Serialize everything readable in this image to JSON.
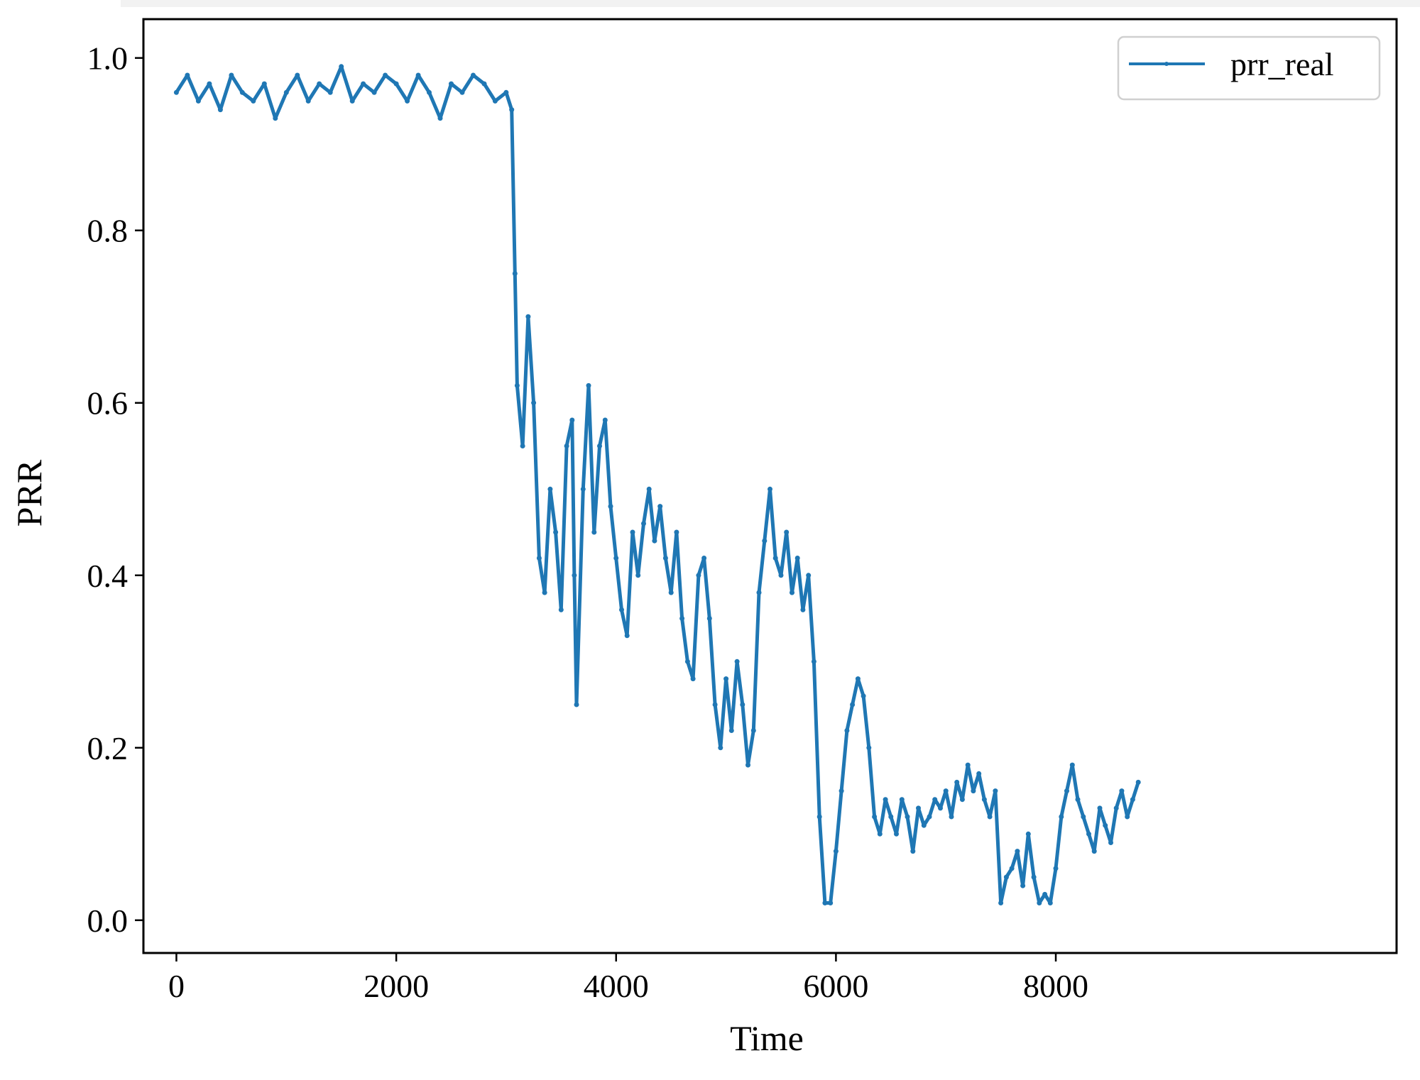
{
  "chart_data": {
    "type": "line",
    "title": "",
    "xlabel": "Time",
    "ylabel": "PRR",
    "xlim": [
      -300,
      11100
    ],
    "ylim": [
      -0.038,
      1.045
    ],
    "x_ticks": [
      0,
      2000,
      4000,
      6000,
      8000
    ],
    "x_tick_labels": [
      "0",
      "2000",
      "4000",
      "6000",
      "8000"
    ],
    "y_ticks": [
      0.0,
      0.2,
      0.4,
      0.6,
      0.8,
      1.0
    ],
    "y_tick_labels": [
      "0.0",
      "0.2",
      "0.4",
      "0.6",
      "0.8",
      "1.0"
    ],
    "grid": false,
    "legend_position": "top-right",
    "series": [
      {
        "name": "prr_real",
        "color": "#1f77b4",
        "marker": "dot",
        "x": [
          0,
          100,
          200,
          300,
          400,
          500,
          600,
          700,
          800,
          900,
          1000,
          1100,
          1200,
          1300,
          1400,
          1500,
          1600,
          1700,
          1800,
          1900,
          2000,
          2100,
          2200,
          2300,
          2400,
          2500,
          2600,
          2700,
          2800,
          2900,
          3000,
          3050,
          3080,
          3100,
          3150,
          3200,
          3250,
          3300,
          3350,
          3400,
          3450,
          3500,
          3550,
          3600,
          3620,
          3640,
          3700,
          3750,
          3800,
          3850,
          3900,
          3950,
          4000,
          4050,
          4100,
          4150,
          4200,
          4250,
          4300,
          4350,
          4400,
          4450,
          4500,
          4550,
          4600,
          4650,
          4700,
          4750,
          4800,
          4850,
          4900,
          4950,
          5000,
          5050,
          5100,
          5150,
          5200,
          5250,
          5300,
          5350,
          5400,
          5450,
          5500,
          5550,
          5600,
          5650,
          5700,
          5750,
          5800,
          5850,
          5900,
          5950,
          6000,
          6050,
          6100,
          6150,
          6200,
          6250,
          6300,
          6350,
          6400,
          6450,
          6500,
          6550,
          6600,
          6650,
          6700,
          6750,
          6800,
          6850,
          6900,
          6950,
          7000,
          7050,
          7100,
          7150,
          7200,
          7250,
          7300,
          7350,
          7400,
          7450,
          7500,
          7550,
          7600,
          7650,
          7700,
          7750,
          7800,
          7850,
          7900,
          7950,
          8000,
          8050,
          8100,
          8150,
          8200,
          8250,
          8300,
          8350,
          8400,
          8450,
          8500,
          8550,
          8600,
          8650,
          8700,
          8750
        ],
        "y": [
          0.96,
          0.98,
          0.95,
          0.97,
          0.94,
          0.98,
          0.96,
          0.95,
          0.97,
          0.93,
          0.96,
          0.98,
          0.95,
          0.97,
          0.96,
          0.99,
          0.95,
          0.97,
          0.96,
          0.98,
          0.97,
          0.95,
          0.98,
          0.96,
          0.93,
          0.97,
          0.96,
          0.98,
          0.97,
          0.95,
          0.96,
          0.94,
          0.75,
          0.62,
          0.55,
          0.7,
          0.6,
          0.42,
          0.38,
          0.5,
          0.45,
          0.36,
          0.55,
          0.58,
          0.4,
          0.25,
          0.5,
          0.62,
          0.45,
          0.55,
          0.58,
          0.48,
          0.42,
          0.36,
          0.33,
          0.45,
          0.4,
          0.46,
          0.5,
          0.44,
          0.48,
          0.42,
          0.38,
          0.45,
          0.35,
          0.3,
          0.28,
          0.4,
          0.42,
          0.35,
          0.25,
          0.2,
          0.28,
          0.22,
          0.3,
          0.25,
          0.18,
          0.22,
          0.38,
          0.44,
          0.5,
          0.42,
          0.4,
          0.45,
          0.38,
          0.42,
          0.36,
          0.4,
          0.3,
          0.12,
          0.02,
          0.02,
          0.08,
          0.15,
          0.22,
          0.25,
          0.28,
          0.26,
          0.2,
          0.12,
          0.1,
          0.14,
          0.12,
          0.1,
          0.14,
          0.12,
          0.08,
          0.13,
          0.11,
          0.12,
          0.14,
          0.13,
          0.15,
          0.12,
          0.16,
          0.14,
          0.18,
          0.15,
          0.17,
          0.14,
          0.12,
          0.15,
          0.02,
          0.05,
          0.06,
          0.08,
          0.04,
          0.1,
          0.05,
          0.02,
          0.03,
          0.02,
          0.06,
          0.12,
          0.15,
          0.18,
          0.14,
          0.12,
          0.1,
          0.08,
          0.13,
          0.11,
          0.09,
          0.13,
          0.15,
          0.12,
          0.14,
          0.16
        ]
      }
    ]
  }
}
